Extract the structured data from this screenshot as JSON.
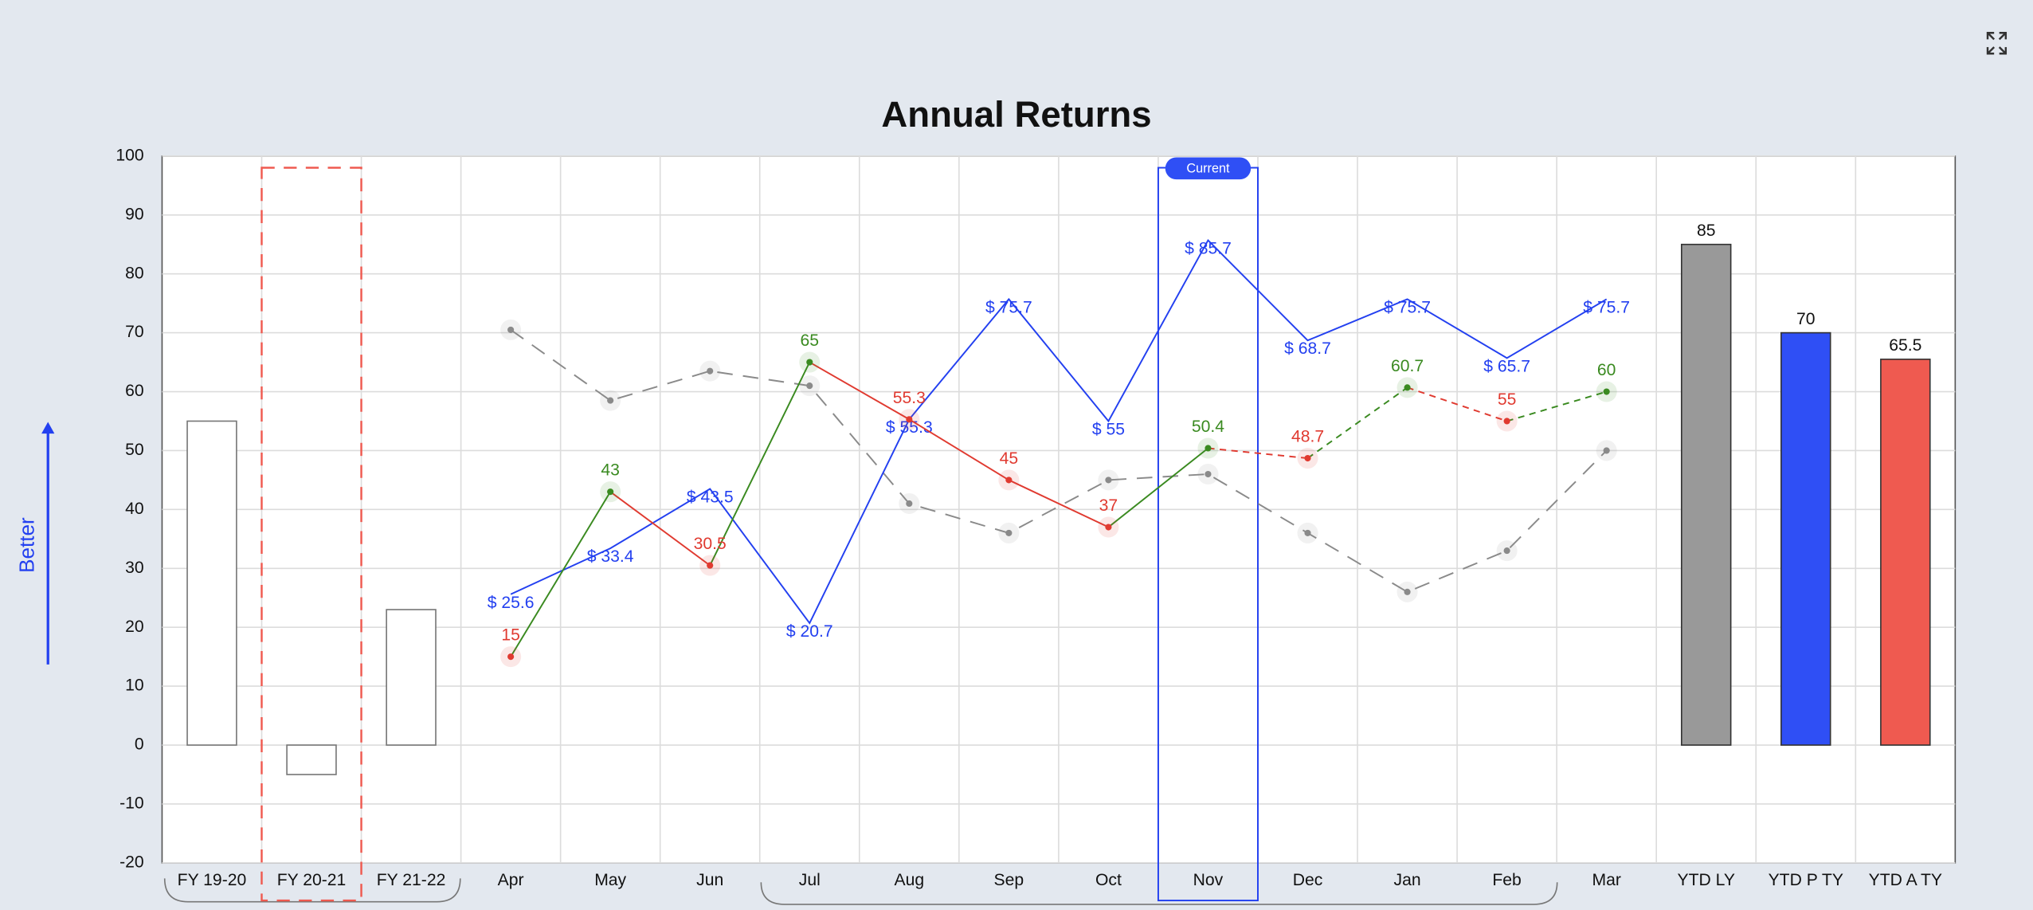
{
  "chart_data": {
    "type": "combo",
    "title": "Annual Returns",
    "y_annotation": "Better",
    "highlight_label": "Current",
    "highlight_category": "Nov",
    "outlined_category": "FY 20-21",
    "categories": [
      "FY 19-20",
      "FY 20-21",
      "FY 21-22",
      "Apr",
      "May",
      "Jun",
      "Jul",
      "Aug",
      "Sep",
      "Oct",
      "Nov",
      "Dec",
      "Jan",
      "Feb",
      "Mar",
      "YTD LY",
      "YTD P TY",
      "YTD A TY"
    ],
    "ylim": [
      -20,
      100
    ],
    "yticks": [
      -20,
      -10,
      0,
      10,
      20,
      30,
      40,
      50,
      60,
      70,
      80,
      90,
      100
    ],
    "grid": true,
    "series": [
      {
        "type": "bar",
        "color": "#ffffff",
        "values": [
          55,
          -5,
          23,
          null,
          null,
          null,
          null,
          null,
          null,
          null,
          null,
          null,
          null,
          null,
          null,
          null,
          null,
          null
        ]
      },
      {
        "type": "bar",
        "colors": [
          null,
          null,
          null,
          null,
          null,
          null,
          null,
          null,
          null,
          null,
          null,
          null,
          null,
          null,
          null,
          "#999999",
          "#2f4ff5",
          "#ef5a50"
        ],
        "data_labels": true,
        "values": [
          null,
          null,
          null,
          null,
          null,
          null,
          null,
          null,
          null,
          null,
          null,
          null,
          null,
          null,
          null,
          85,
          70,
          65.5
        ]
      },
      {
        "type": "line",
        "color": "#8a8a8a",
        "dashed": true,
        "markers": true,
        "values": [
          null,
          null,
          null,
          70.5,
          58.5,
          63.5,
          61,
          41,
          36,
          45,
          46,
          36,
          26,
          33,
          50,
          null,
          null,
          null
        ]
      },
      {
        "type": "line",
        "color": "#2340f0",
        "values": [
          null,
          null,
          null,
          25.6,
          33.4,
          43.5,
          20.7,
          55.3,
          75.7,
          55,
          85.7,
          68.7,
          75.7,
          65.7,
          75.7,
          null,
          null,
          null
        ],
        "value_labels": [
          null,
          null,
          null,
          "$ 25.6",
          "$ 33.4",
          "$ 43.5",
          "$ 20.7",
          "$ 55.3",
          "$ 75.7",
          "$ 55",
          "$ 85.7",
          "$ 68.7",
          "$ 75.7",
          "$ 65.7",
          "$ 75.7",
          null,
          null,
          null
        ]
      },
      {
        "type": "line",
        "markers": true,
        "data_labels": true,
        "values": [
          null,
          null,
          null,
          15,
          43,
          30.5,
          65,
          55.3,
          45,
          37,
          50.4,
          48.7,
          60.7,
          55,
          60,
          null,
          null,
          null
        ],
        "colors": [
          null,
          null,
          null,
          "#e03a30",
          "#3a8a20",
          "#e03a30",
          "#3a8a20",
          "#e03a30",
          "#e03a30",
          "#e03a30",
          "#3a8a20",
          "#e03a30",
          "#3a8a20",
          "#e03a30",
          "#3a8a20",
          null,
          null,
          null
        ],
        "dashes": [
          null,
          null,
          null,
          false,
          false,
          false,
          false,
          false,
          false,
          false,
          false,
          true,
          true,
          true,
          true,
          null,
          null,
          null
        ]
      }
    ]
  }
}
